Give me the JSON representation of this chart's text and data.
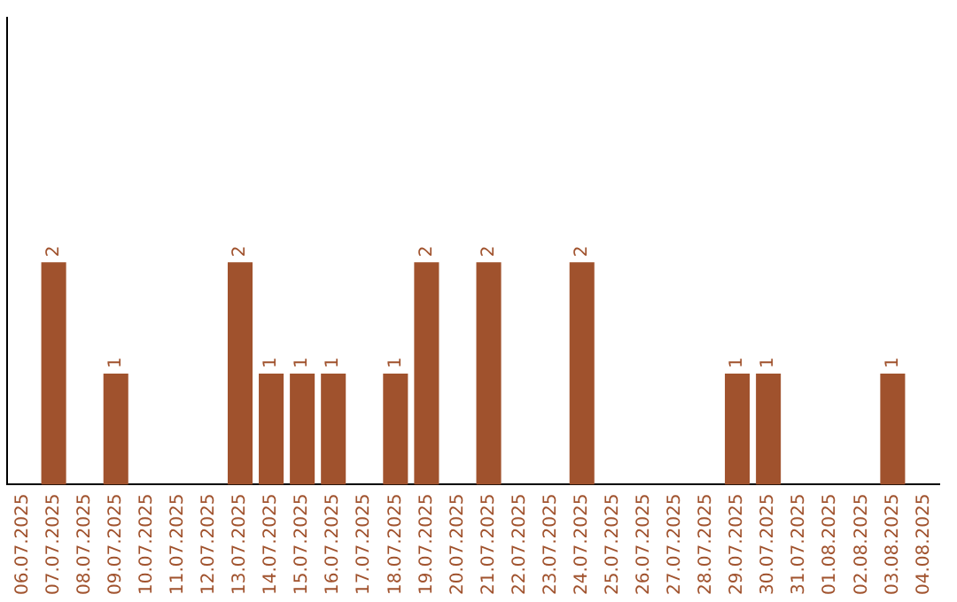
{
  "chart_data": {
    "type": "bar",
    "categories": [
      "06.07.2025",
      "07.07.2025",
      "08.07.2025",
      "09.07.2025",
      "10.07.2025",
      "11.07.2025",
      "12.07.2025",
      "13.07.2025",
      "14.07.2025",
      "15.07.2025",
      "16.07.2025",
      "17.07.2025",
      "18.07.2025",
      "19.07.2025",
      "20.07.2025",
      "21.07.2025",
      "22.07.2025",
      "23.07.2025",
      "24.07.2025",
      "25.07.2025",
      "26.07.2025",
      "27.07.2025",
      "28.07.2025",
      "29.07.2025",
      "30.07.2025",
      "31.07.2025",
      "01.08.2025",
      "02.08.2025",
      "03.08.2025",
      "04.08.2025"
    ],
    "values": [
      0,
      2,
      0,
      1,
      0,
      0,
      0,
      2,
      1,
      1,
      1,
      0,
      1,
      2,
      0,
      2,
      0,
      0,
      2,
      0,
      0,
      0,
      0,
      1,
      1,
      0,
      0,
      0,
      1,
      0
    ],
    "value_labels": [
      null,
      "2",
      null,
      "1",
      null,
      null,
      null,
      "2",
      "1",
      "1",
      "1",
      null,
      "1",
      "2",
      null,
      "2",
      null,
      null,
      "2",
      null,
      null,
      null,
      null,
      "1",
      "1",
      null,
      null,
      null,
      "1",
      null
    ],
    "color": "#a0522d",
    "ylim": [
      0,
      4.2
    ],
    "tick_labels": "x",
    "grid": false,
    "legend": false
  }
}
